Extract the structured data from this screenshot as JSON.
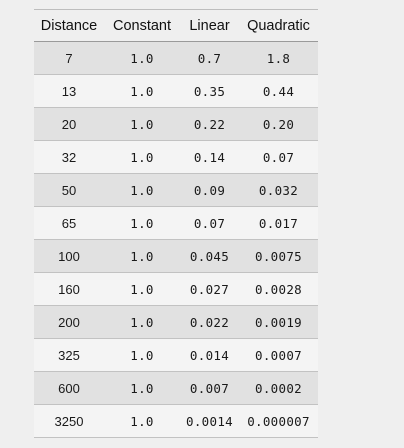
{
  "table": {
    "headers": [
      "Distance",
      "Constant",
      "Linear",
      "Quadratic"
    ],
    "rows": [
      [
        "7",
        "1.0",
        "0.7",
        "1.8"
      ],
      [
        "13",
        "1.0",
        "0.35",
        "0.44"
      ],
      [
        "20",
        "1.0",
        "0.22",
        "0.20"
      ],
      [
        "32",
        "1.0",
        "0.14",
        "0.07"
      ],
      [
        "50",
        "1.0",
        "0.09",
        "0.032"
      ],
      [
        "65",
        "1.0",
        "0.07",
        "0.017"
      ],
      [
        "100",
        "1.0",
        "0.045",
        "0.0075"
      ],
      [
        "160",
        "1.0",
        "0.027",
        "0.0028"
      ],
      [
        "200",
        "1.0",
        "0.022",
        "0.0019"
      ],
      [
        "325",
        "1.0",
        "0.014",
        "0.0007"
      ],
      [
        "600",
        "1.0",
        "0.007",
        "0.0002"
      ],
      [
        "3250",
        "1.0",
        "0.0014",
        "0.000007"
      ]
    ]
  }
}
